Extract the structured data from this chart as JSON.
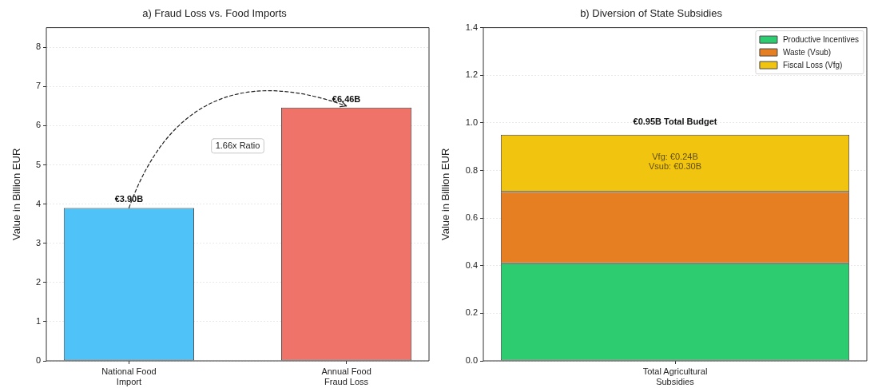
{
  "chart_data": [
    {
      "type": "bar",
      "title": "a) Fraud Loss vs. Food Imports",
      "ylabel": "Value in Billion EUR",
      "categories": [
        "National Food\nImport",
        "Annual Food\nFraud Loss"
      ],
      "values": [
        3.9,
        6.46
      ],
      "colors": [
        "#4fc3f7",
        "#ef7369"
      ],
      "value_labels": [
        "€3.90B",
        "€6.46B"
      ],
      "ylim": [
        0,
        8.5
      ],
      "yticks": [
        0,
        1,
        2,
        3,
        4,
        5,
        6,
        7,
        8
      ],
      "grid": "y",
      "annotations": [
        "1.66x Ratio"
      ]
    },
    {
      "type": "bar",
      "title": "b) Diversion of State Subsidies",
      "ylabel": "Value in Billion EUR",
      "categories": [
        "Total Agricultural\nSubsidies"
      ],
      "stacked": true,
      "series": [
        {
          "name": "Productive Incentives",
          "color": "#2ecc71",
          "values": [
            0.41
          ]
        },
        {
          "name": "Waste (Vsub)",
          "color": "#e67e22",
          "values": [
            0.3
          ]
        },
        {
          "name": "Fiscal Loss (Vfg)",
          "color": "#f1c40f",
          "values": [
            0.24
          ]
        }
      ],
      "totals": [
        "€0.95B Total Budget"
      ],
      "ylim": [
        0,
        1.4
      ],
      "yticks": [
        {
          "value": 0,
          "label": "0.0"
        },
        0.2,
        0.4,
        0.6,
        0.8,
        {
          "value": 1,
          "label": "1.0"
        },
        1.2,
        1.4
      ],
      "grid": "y",
      "legend": "top right",
      "annotations": [
        "Vfg: €0.24B\nVsub: €0.30B"
      ]
    }
  ]
}
